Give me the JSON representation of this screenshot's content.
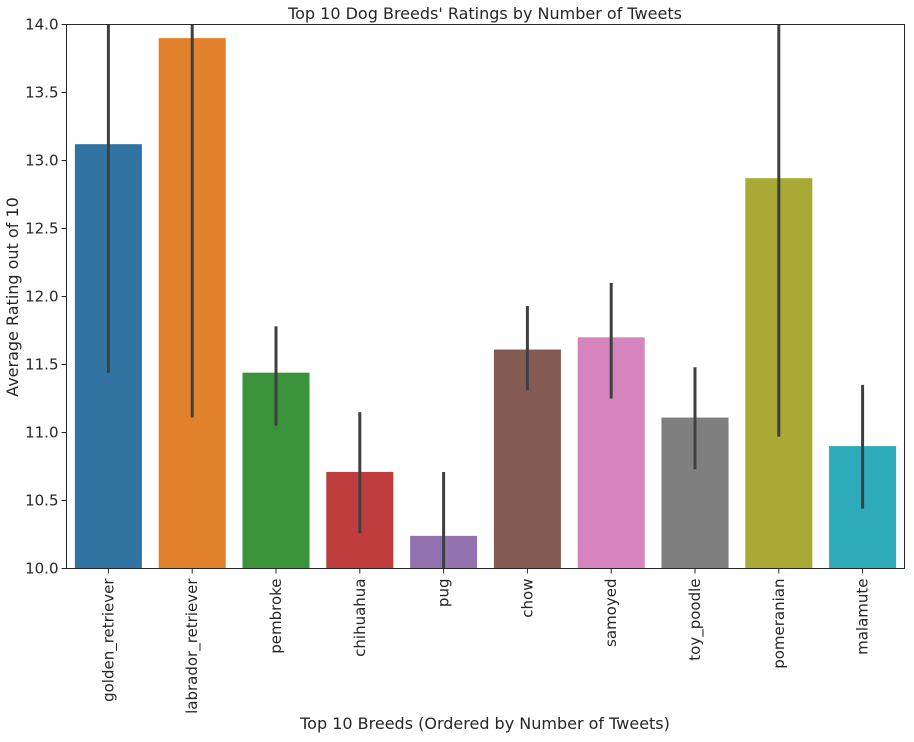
{
  "chart_data": {
    "type": "bar",
    "title": "Top 10 Dog Breeds' Ratings by Number of Tweets",
    "xlabel": "Top 10 Breeds (Ordered by Number of Tweets)",
    "ylabel": "Average Rating out of 10",
    "ylim": [
      10.0,
      14.0
    ],
    "yticks": [
      "10.0",
      "10.5",
      "11.0",
      "11.5",
      "12.0",
      "12.5",
      "13.0",
      "13.5",
      "14.0"
    ],
    "grid": false,
    "categories": [
      "golden_retriever",
      "labrador_retriever",
      "pembroke",
      "chihuahua",
      "pug",
      "chow",
      "samoyed",
      "toy_poodle",
      "pomeranian",
      "malamute"
    ],
    "values": [
      13.12,
      13.9,
      11.44,
      10.71,
      10.24,
      11.61,
      11.7,
      11.11,
      12.87,
      10.9
    ],
    "error_low": [
      11.44,
      11.11,
      11.05,
      10.26,
      9.99,
      11.31,
      11.25,
      10.73,
      10.97,
      10.44
    ],
    "error_high": [
      14.0,
      14.0,
      11.78,
      11.15,
      10.71,
      11.93,
      12.1,
      11.48,
      14.0,
      11.35
    ],
    "colors": [
      "#3274a1",
      "#e1812c",
      "#3a923a",
      "#c03d3e",
      "#9372b2",
      "#845b53",
      "#d684bd",
      "#7f7f7f",
      "#a9aa35",
      "#2eabb8"
    ]
  }
}
